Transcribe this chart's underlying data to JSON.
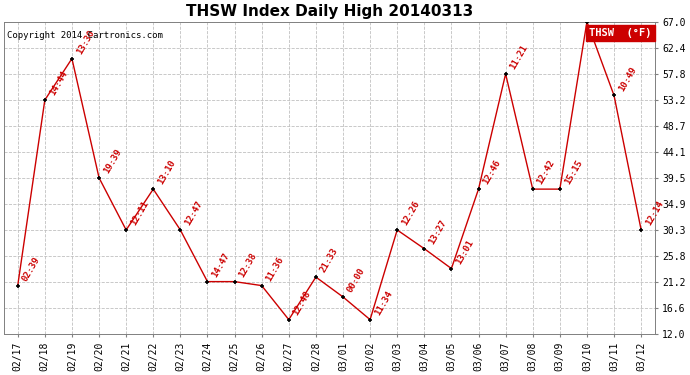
{
  "title": "THSW Index Daily High 20140313",
  "copyright": "Copyright 2014 Cartronics.com",
  "legend_label": "THSW  (°F)",
  "x_labels": [
    "02/17",
    "02/18",
    "02/19",
    "02/20",
    "02/21",
    "02/22",
    "02/23",
    "02/24",
    "02/25",
    "02/26",
    "02/27",
    "02/28",
    "03/01",
    "03/02",
    "03/03",
    "03/04",
    "03/05",
    "03/06",
    "03/07",
    "03/08",
    "03/09",
    "03/10",
    "03/11",
    "03/12"
  ],
  "y_values": [
    20.5,
    53.2,
    60.5,
    39.5,
    30.3,
    37.5,
    30.3,
    21.2,
    21.2,
    20.5,
    14.5,
    22.0,
    18.5,
    14.5,
    30.3,
    27.0,
    23.5,
    37.5,
    57.8,
    37.5,
    37.5,
    67.0,
    54.0,
    30.3
  ],
  "time_labels": [
    "02:39",
    "14:44",
    "13:30",
    "19:39",
    "12:11",
    "13:10",
    "12:47",
    "14:47",
    "12:38",
    "11:36",
    "12:48",
    "21:33",
    "00:00",
    "11:34",
    "12:26",
    "13:27",
    "13:01",
    "12:46",
    "11:21",
    "12:42",
    "15:15",
    "",
    "10:49",
    "12:14"
  ],
  "ylim_min": 12.0,
  "ylim_max": 67.0,
  "yticks": [
    12.0,
    16.6,
    21.2,
    25.8,
    30.3,
    34.9,
    39.5,
    44.1,
    48.7,
    53.2,
    57.8,
    62.4,
    67.0
  ],
  "line_color": "#cc0000",
  "marker_color": "#000000",
  "bg_color": "#ffffff",
  "grid_color": "#c0c0c0",
  "title_fontsize": 11,
  "axis_fontsize": 7,
  "label_fontsize": 6.5
}
